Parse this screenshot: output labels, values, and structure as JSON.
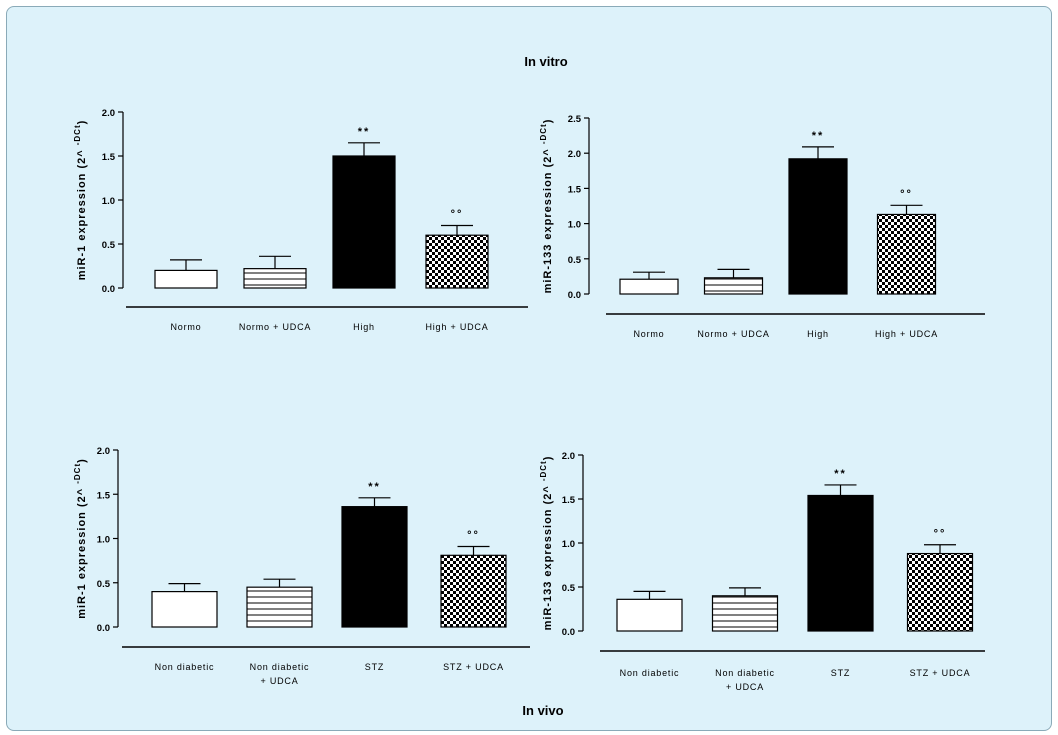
{
  "page": {
    "top_label": "In vitro",
    "bottom_label": "In vivo"
  },
  "chart_data": [
    {
      "type": "bar",
      "ylabel": "miR-1 expression (2^-DCt)",
      "ylim": [
        0,
        2.0
      ],
      "yticks": [
        "0.0",
        "0.5",
        "1.0",
        "1.5",
        "2.0"
      ],
      "categories": [
        "Normo",
        "Normo + UDCA",
        "High",
        "High + UDCA"
      ],
      "values": [
        0.2,
        0.22,
        1.5,
        0.6
      ],
      "errors": [
        0.12,
        0.14,
        0.15,
        0.11
      ],
      "annotations": [
        "",
        "",
        "**",
        "°°"
      ],
      "fills": [
        "white",
        "stripes",
        "black",
        "checker"
      ]
    },
    {
      "type": "bar",
      "ylabel": "miR-133 expression (2^-DCt)",
      "ylim": [
        0,
        2.5
      ],
      "yticks": [
        "0.0",
        "0.5",
        "1.0",
        "1.5",
        "2.0",
        "2.5"
      ],
      "categories": [
        "Normo",
        "Normo + UDCA",
        "High",
        "High + UDCA"
      ],
      "values": [
        0.21,
        0.23,
        1.92,
        1.13
      ],
      "errors": [
        0.1,
        0.12,
        0.17,
        0.13
      ],
      "annotations": [
        "",
        "",
        "**",
        "°°"
      ],
      "fills": [
        "white",
        "stripes",
        "black",
        "checker"
      ]
    },
    {
      "type": "bar",
      "ylabel": "miR-1 expression (2^-DCt)",
      "ylim": [
        0,
        2.0
      ],
      "yticks": [
        "0.0",
        "0.5",
        "1.0",
        "1.5",
        "2.0"
      ],
      "categories": [
        "Non diabetic",
        "Non diabetic\n+ UDCA",
        "STZ",
        "STZ + UDCA"
      ],
      "values": [
        0.4,
        0.45,
        1.36,
        0.81
      ],
      "errors": [
        0.09,
        0.09,
        0.1,
        0.1
      ],
      "annotations": [
        "",
        "",
        "**",
        "°°"
      ],
      "fills": [
        "white",
        "stripes",
        "black",
        "checker"
      ]
    },
    {
      "type": "bar",
      "ylabel": "miR-133 expression (2^-DCt)",
      "ylim": [
        0,
        2.0
      ],
      "yticks": [
        "0.0",
        "0.5",
        "1.0",
        "1.5",
        "2.0"
      ],
      "categories": [
        "Non diabetic",
        "Non diabetic\n+ UDCA",
        "STZ",
        "STZ + UDCA"
      ],
      "values": [
        0.36,
        0.4,
        1.54,
        0.88
      ],
      "errors": [
        0.09,
        0.09,
        0.12,
        0.1
      ],
      "annotations": [
        "",
        "",
        "**",
        "°°"
      ],
      "fills": [
        "white",
        "stripes",
        "black",
        "checker"
      ]
    }
  ]
}
